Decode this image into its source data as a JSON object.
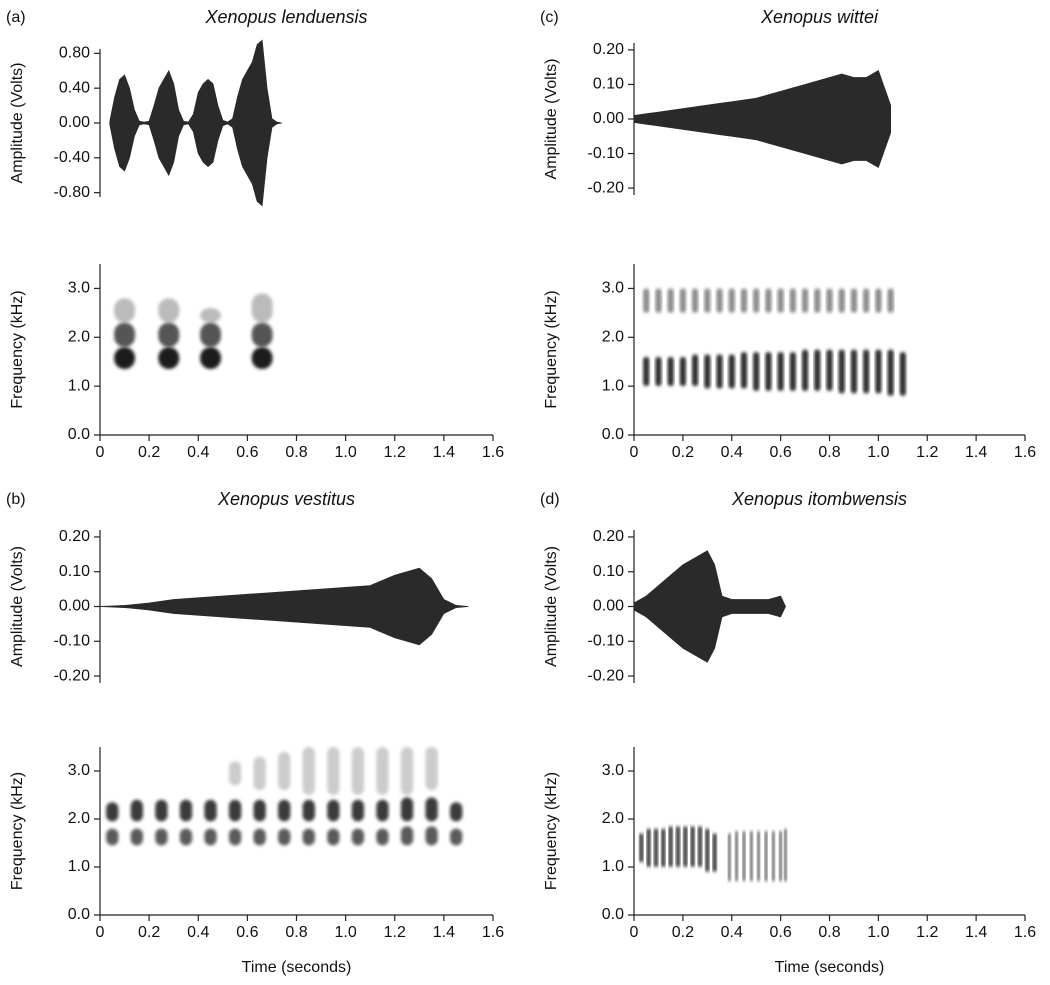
{
  "chart_data": [
    {
      "type": "waveform",
      "panel_label": "(a)",
      "title": "Xenopus lenduensis",
      "ylabel": "Amplitude (Volts)",
      "color": "#2a2a2a",
      "xlim": [
        0,
        1.6
      ],
      "ylim": [
        -0.85,
        0.85
      ],
      "yticks": [
        {
          "value": -0.8,
          "label": "-0.80"
        },
        {
          "value": -0.4,
          "label": "-0.40"
        },
        {
          "value": 0,
          "label": "0.00"
        },
        {
          "value": 0.4,
          "label": "0.40"
        },
        {
          "value": 0.8,
          "label": "0.80"
        }
      ],
      "x": [
        0.04,
        0.06,
        0.08,
        0.1,
        0.12,
        0.14,
        0.16,
        0.18,
        0.2,
        0.22,
        0.24,
        0.26,
        0.28,
        0.3,
        0.32,
        0.34,
        0.36,
        0.38,
        0.4,
        0.42,
        0.44,
        0.46,
        0.48,
        0.5,
        0.52,
        0.54,
        0.56,
        0.58,
        0.6,
        0.62,
        0.64,
        0.66,
        0.68,
        0.7,
        0.72,
        0.74
      ],
      "values": [
        0.02,
        0.3,
        0.5,
        0.55,
        0.4,
        0.15,
        0.02,
        0.01,
        0.02,
        0.2,
        0.4,
        0.5,
        0.6,
        0.45,
        0.15,
        0.02,
        0.01,
        0.1,
        0.35,
        0.45,
        0.5,
        0.45,
        0.2,
        0.03,
        0.01,
        0.05,
        0.3,
        0.5,
        0.6,
        0.7,
        0.9,
        0.95,
        0.4,
        0.05,
        0.01,
        0.0
      ]
    },
    {
      "type": "spectrogram",
      "ylabel": "Frequency (kHz)",
      "xlim": [
        0,
        1.6
      ],
      "ylim": [
        0,
        3.5
      ],
      "xticks": [
        0,
        0.2,
        0.4,
        0.6,
        0.8,
        {
          "value": 1,
          "label": "1.0"
        },
        1.2,
        1.4,
        1.6
      ],
      "yticks": [
        {
          "value": 0,
          "label": "0.0"
        },
        {
          "value": 1,
          "label": "1.0"
        },
        {
          "value": 2,
          "label": "2.0"
        },
        {
          "value": 3,
          "label": "3.0"
        }
      ],
      "bands": [
        {
          "color": "#bbbbbb",
          "x": [
            0.1,
            0.28,
            0.45,
            0.66
          ],
          "low": [
            2.3,
            2.3,
            2.3,
            2.3
          ],
          "high": [
            2.8,
            2.8,
            2.6,
            2.9
          ]
        },
        {
          "color": "#555555",
          "x": [
            0.1,
            0.28,
            0.45,
            0.66
          ],
          "low": [
            1.8,
            1.8,
            1.8,
            1.8
          ],
          "high": [
            2.3,
            2.3,
            2.3,
            2.3
          ]
        },
        {
          "color": "#1e1e1e",
          "x": [
            0.1,
            0.28,
            0.45,
            0.66
          ],
          "low": [
            1.35,
            1.35,
            1.35,
            1.35
          ],
          "high": [
            1.8,
            1.8,
            1.8,
            1.8
          ]
        }
      ]
    },
    {
      "type": "waveform",
      "panel_label": "(c)",
      "title": "Xenopus wittei",
      "ylabel": "Amplitude (Volts)",
      "color": "#2a2a2a",
      "xlim": [
        0,
        1.6
      ],
      "ylim": [
        -0.22,
        0.22
      ],
      "yticks": [
        {
          "value": -0.2,
          "label": "-0.20"
        },
        {
          "value": -0.1,
          "label": "-0.10"
        },
        {
          "value": 0,
          "label": "0.00"
        },
        {
          "value": 0.1,
          "label": "0.10"
        },
        {
          "value": 0.2,
          "label": "0.20"
        }
      ],
      "x": [
        0.0,
        0.05,
        0.1,
        0.15,
        0.2,
        0.25,
        0.3,
        0.35,
        0.4,
        0.45,
        0.5,
        0.55,
        0.6,
        0.65,
        0.7,
        0.75,
        0.8,
        0.85,
        0.9,
        0.95,
        1.0,
        1.05
      ],
      "values": [
        0.01,
        0.015,
        0.02,
        0.025,
        0.03,
        0.035,
        0.04,
        0.045,
        0.05,
        0.055,
        0.06,
        0.07,
        0.08,
        0.09,
        0.1,
        0.11,
        0.12,
        0.13,
        0.12,
        0.12,
        0.14,
        0.04
      ]
    },
    {
      "type": "spectrogram",
      "ylabel": "Frequency (kHz)",
      "xlim": [
        0,
        1.6
      ],
      "ylim": [
        0,
        3.5
      ],
      "xticks": [
        0,
        0.2,
        0.4,
        0.6,
        0.8,
        {
          "value": 1,
          "label": "1.0"
        },
        1.2,
        1.4,
        1.6
      ],
      "yticks": [
        {
          "value": 0,
          "label": "0.0"
        },
        {
          "value": 1,
          "label": "1.0"
        },
        {
          "value": 2,
          "label": "2.0"
        },
        {
          "value": 3,
          "label": "3.0"
        }
      ],
      "bands": [
        {
          "color": "#8a8a8a",
          "x": [
            0.05,
            0.1,
            0.15,
            0.2,
            0.25,
            0.3,
            0.35,
            0.4,
            0.45,
            0.5,
            0.55,
            0.6,
            0.65,
            0.7,
            0.75,
            0.8,
            0.85,
            0.9,
            0.95,
            1.0,
            1.05
          ],
          "low": [
            2.5,
            2.5,
            2.5,
            2.5,
            2.5,
            2.5,
            2.5,
            2.5,
            2.5,
            2.5,
            2.5,
            2.5,
            2.5,
            2.5,
            2.5,
            2.5,
            2.5,
            2.5,
            2.5,
            2.5,
            2.5
          ],
          "high": [
            3.0,
            3.0,
            3.0,
            3.0,
            3.0,
            3.0,
            3.0,
            3.0,
            3.0,
            3.0,
            3.0,
            3.0,
            3.0,
            3.0,
            3.0,
            3.0,
            3.0,
            3.0,
            3.0,
            3.0,
            3.0
          ]
        },
        {
          "color": "#2a2a2a",
          "x": [
            0.05,
            0.1,
            0.15,
            0.2,
            0.25,
            0.3,
            0.35,
            0.4,
            0.45,
            0.5,
            0.55,
            0.6,
            0.65,
            0.7,
            0.75,
            0.8,
            0.85,
            0.9,
            0.95,
            1.0,
            1.05,
            1.1
          ],
          "low": [
            1.0,
            1.0,
            1.0,
            1.0,
            1.0,
            0.95,
            0.95,
            0.95,
            0.95,
            0.9,
            0.9,
            0.9,
            0.9,
            0.9,
            0.9,
            0.9,
            0.85,
            0.85,
            0.85,
            0.85,
            0.8,
            0.8
          ],
          "high": [
            1.6,
            1.6,
            1.6,
            1.6,
            1.65,
            1.65,
            1.65,
            1.65,
            1.7,
            1.7,
            1.7,
            1.7,
            1.7,
            1.75,
            1.75,
            1.75,
            1.75,
            1.75,
            1.75,
            1.75,
            1.75,
            1.7
          ]
        }
      ]
    },
    {
      "type": "waveform",
      "panel_label": "(b)",
      "title": "Xenopus vestitus",
      "ylabel": "Amplitude (Volts)",
      "color": "#2a2a2a",
      "xlim": [
        0,
        1.6
      ],
      "ylim": [
        -0.22,
        0.22
      ],
      "yticks": [
        {
          "value": -0.2,
          "label": "-0.20"
        },
        {
          "value": -0.1,
          "label": "-0.10"
        },
        {
          "value": 0,
          "label": "0.00"
        },
        {
          "value": 0.1,
          "label": "0.10"
        },
        {
          "value": 0.2,
          "label": "0.20"
        }
      ],
      "x": [
        0.0,
        0.1,
        0.2,
        0.3,
        0.4,
        0.5,
        0.6,
        0.7,
        0.8,
        0.9,
        1.0,
        1.1,
        1.2,
        1.3,
        1.35,
        1.4,
        1.45,
        1.5
      ],
      "values": [
        0.0,
        0.003,
        0.01,
        0.02,
        0.025,
        0.03,
        0.035,
        0.04,
        0.045,
        0.05,
        0.055,
        0.06,
        0.09,
        0.11,
        0.08,
        0.02,
        0.003,
        0.0
      ]
    },
    {
      "type": "spectrogram",
      "ylabel": "Frequency (kHz)",
      "xlim": [
        0,
        1.6
      ],
      "ylim": [
        0,
        3.5
      ],
      "xticks": [
        0,
        0.2,
        0.4,
        0.6,
        0.8,
        {
          "value": 1,
          "label": "1.0"
        },
        1.2,
        1.4,
        1.6
      ],
      "yticks": [
        {
          "value": 0,
          "label": "0.0"
        },
        {
          "value": 1,
          "label": "1.0"
        },
        {
          "value": 2,
          "label": "2.0"
        },
        {
          "value": 3,
          "label": "3.0"
        }
      ],
      "xlabel": "Time (seconds)",
      "bands": [
        {
          "color": "#cccccc",
          "x": [
            0.55,
            0.65,
            0.75,
            0.85,
            0.95,
            1.05,
            1.15,
            1.25,
            1.35
          ],
          "low": [
            2.7,
            2.6,
            2.6,
            2.5,
            2.5,
            2.5,
            2.5,
            2.5,
            2.6
          ],
          "high": [
            3.2,
            3.3,
            3.4,
            3.5,
            3.5,
            3.5,
            3.5,
            3.5,
            3.5
          ]
        },
        {
          "color": "#3a3a3a",
          "x": [
            0.05,
            0.15,
            0.25,
            0.35,
            0.45,
            0.55,
            0.65,
            0.75,
            0.85,
            0.95,
            1.05,
            1.15,
            1.25,
            1.35,
            1.45
          ],
          "low": [
            1.95,
            1.95,
            1.95,
            1.95,
            1.95,
            1.95,
            1.95,
            1.95,
            1.95,
            1.95,
            1.95,
            1.95,
            1.95,
            1.95,
            1.95
          ],
          "high": [
            2.35,
            2.4,
            2.4,
            2.4,
            2.4,
            2.4,
            2.4,
            2.4,
            2.4,
            2.4,
            2.4,
            2.4,
            2.45,
            2.45,
            2.35
          ]
        },
        {
          "color": "#5a5a5a",
          "x": [
            0.05,
            0.15,
            0.25,
            0.35,
            0.45,
            0.55,
            0.65,
            0.75,
            0.85,
            0.95,
            1.05,
            1.15,
            1.25,
            1.35,
            1.45
          ],
          "low": [
            1.45,
            1.45,
            1.45,
            1.45,
            1.45,
            1.45,
            1.45,
            1.45,
            1.45,
            1.45,
            1.45,
            1.45,
            1.45,
            1.45,
            1.45
          ],
          "high": [
            1.8,
            1.8,
            1.8,
            1.8,
            1.8,
            1.8,
            1.8,
            1.8,
            1.8,
            1.8,
            1.8,
            1.8,
            1.85,
            1.85,
            1.8
          ]
        }
      ]
    },
    {
      "type": "waveform",
      "panel_label": "(d)",
      "title": "Xenopus itombwensis",
      "ylabel": "Amplitude (Volts)",
      "color": "#2a2a2a",
      "xlim": [
        0,
        1.6
      ],
      "ylim": [
        -0.22,
        0.22
      ],
      "yticks": [
        {
          "value": -0.2,
          "label": "-0.20"
        },
        {
          "value": -0.1,
          "label": "-0.10"
        },
        {
          "value": 0,
          "label": "0.00"
        },
        {
          "value": 0.1,
          "label": "0.10"
        },
        {
          "value": 0.2,
          "label": "0.20"
        }
      ],
      "x": [
        0.0,
        0.05,
        0.1,
        0.15,
        0.2,
        0.25,
        0.3,
        0.33,
        0.36,
        0.4,
        0.45,
        0.5,
        0.55,
        0.6,
        0.62
      ],
      "values": [
        0.01,
        0.03,
        0.06,
        0.09,
        0.12,
        0.14,
        0.16,
        0.12,
        0.03,
        0.02,
        0.02,
        0.02,
        0.02,
        0.03,
        0.0
      ]
    },
    {
      "type": "spectrogram",
      "ylabel": "Frequency (kHz)",
      "xlim": [
        0,
        1.6
      ],
      "ylim": [
        0,
        3.5
      ],
      "xticks": [
        0,
        0.2,
        0.4,
        0.6,
        0.8,
        {
          "value": 1,
          "label": "1.0"
        },
        1.2,
        1.4,
        1.6
      ],
      "yticks": [
        {
          "value": 0,
          "label": "0.0"
        },
        {
          "value": 1,
          "label": "1.0"
        },
        {
          "value": 2,
          "label": "2.0"
        },
        {
          "value": 3,
          "label": "3.0"
        }
      ],
      "xlabel": "Time (seconds)",
      "bands": [
        {
          "color": "#1a1a1a",
          "x": [
            0.03,
            0.06,
            0.09,
            0.12,
            0.15,
            0.18,
            0.21,
            0.24,
            0.27,
            0.3,
            0.33
          ],
          "low": [
            1.1,
            1.0,
            1.0,
            1.0,
            1.0,
            1.0,
            1.0,
            1.0,
            1.0,
            0.9,
            0.9
          ],
          "high": [
            1.7,
            1.8,
            1.8,
            1.8,
            1.85,
            1.85,
            1.85,
            1.85,
            1.85,
            1.8,
            1.7
          ]
        },
        {
          "color": "#3c3c3c",
          "x": [
            0.39,
            0.42,
            0.45,
            0.48,
            0.51,
            0.54,
            0.57,
            0.6,
            0.62
          ],
          "low": [
            0.7,
            0.7,
            0.7,
            0.7,
            0.7,
            0.7,
            0.7,
            0.7,
            0.7
          ],
          "high": [
            1.7,
            1.75,
            1.75,
            1.75,
            1.75,
            1.75,
            1.75,
            1.75,
            1.8
          ]
        }
      ]
    }
  ]
}
